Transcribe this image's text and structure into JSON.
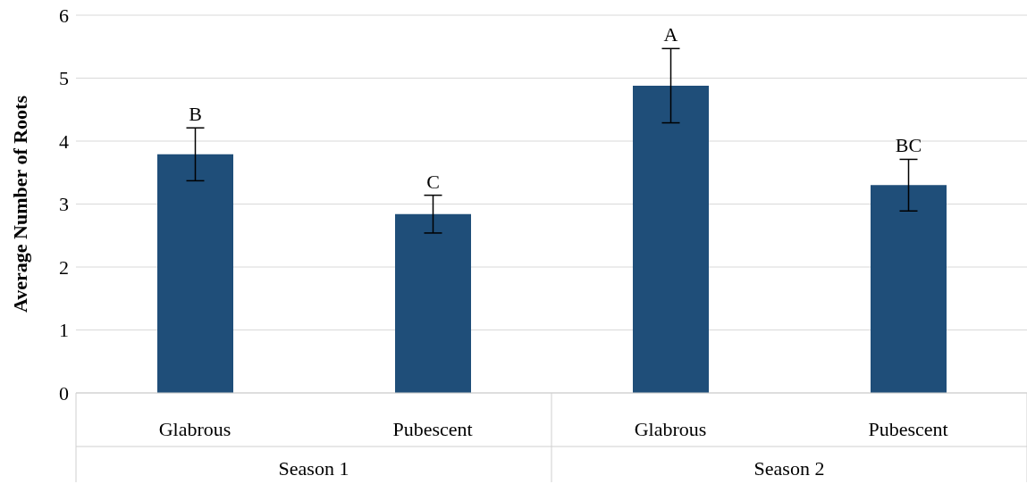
{
  "chart_data": {
    "type": "bar",
    "ylabel": "Average Number of Roots",
    "categories": [
      "Glabrous",
      "Pubescent",
      "Glabrous",
      "Pubescent"
    ],
    "values": [
      3.79,
      2.84,
      4.88,
      3.3
    ],
    "errors": [
      0.42,
      0.3,
      0.59,
      0.41
    ],
    "color": "#1f4e79",
    "ylim": [
      0,
      6
    ],
    "yticks": [
      0,
      1,
      2,
      3,
      4,
      5,
      6
    ],
    "grid": "y",
    "annotations": [
      "B",
      "C",
      "A",
      "BC",
      "Season 1",
      "Season 2"
    ]
  }
}
